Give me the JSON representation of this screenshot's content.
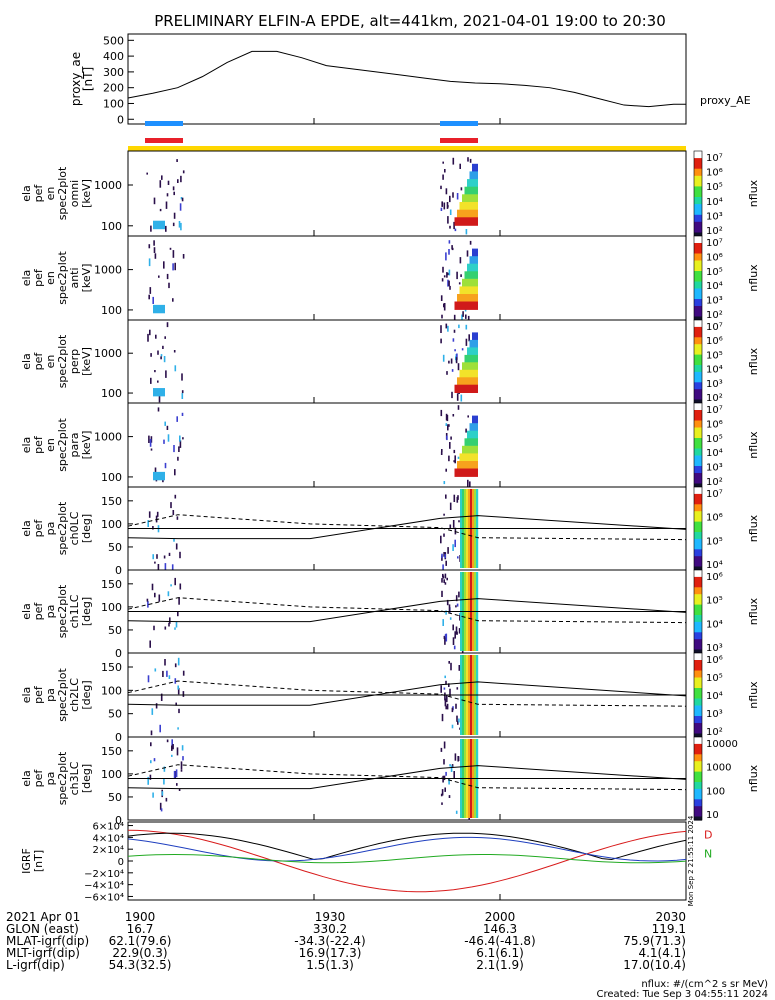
{
  "title": "PRELIMINARY ELFIN-A EPDE, alt=441km, 2021-04-01 19:00 to 20:30",
  "colors": {
    "axis": "#000000",
    "bar_blue": "#1e90ff",
    "bar_red": "#e8202a",
    "bar_yellow": "#ffd700",
    "bx": "#d81b1b",
    "by": "#1f3fbf",
    "bz": "#22aa22",
    "btot": "#000000"
  },
  "chart_data": [
    {
      "type": "line",
      "ylabel": [
        "proxy_ae",
        "[nT]"
      ],
      "yticks": [
        "500",
        "400",
        "300",
        "200",
        "100",
        "0"
      ],
      "ytick_values": [
        500,
        400,
        300,
        200,
        100,
        0
      ],
      "ylim": [
        -30,
        540
      ],
      "legend": "proxy_AE",
      "xlim_min": [
        0,
        90
      ],
      "x_min": [
        0,
        4,
        8,
        12,
        16,
        20,
        24,
        28,
        32,
        36,
        40,
        44,
        48,
        52,
        56,
        60,
        64,
        68,
        72,
        76,
        80,
        84,
        88,
        90
      ],
      "values": [
        135,
        165,
        200,
        270,
        360,
        430,
        430,
        390,
        340,
        320,
        300,
        280,
        260,
        240,
        230,
        225,
        215,
        200,
        170,
        130,
        90,
        80,
        95,
        95
      ]
    },
    {
      "type": "heatmap",
      "ylabel": [
        "ela",
        "pef",
        "en",
        "spec2plot",
        "omni",
        "[keV]"
      ],
      "yticks": [
        "1000",
        "100"
      ],
      "cbar_ticks": [
        "10⁷",
        "10⁶",
        "10⁵",
        "10⁴",
        "10³",
        "10²"
      ],
      "cbar_label": "nflux"
    },
    {
      "type": "heatmap",
      "ylabel": [
        "ela",
        "pef",
        "en",
        "spec2plot",
        "anti",
        "[keV]"
      ],
      "yticks": [
        "1000",
        "100"
      ],
      "cbar_ticks": [
        "10⁷",
        "10⁶",
        "10⁵",
        "10⁴",
        "10³",
        "10²"
      ],
      "cbar_label": "nflux"
    },
    {
      "type": "heatmap",
      "ylabel": [
        "ela",
        "pef",
        "en",
        "spec2plot",
        "perp",
        "[keV]"
      ],
      "yticks": [
        "1000",
        "100"
      ],
      "cbar_ticks": [
        "10⁷",
        "10⁶",
        "10⁵",
        "10⁴",
        "10³",
        "10²"
      ],
      "cbar_label": "nflux"
    },
    {
      "type": "heatmap",
      "ylabel": [
        "ela",
        "pef",
        "en",
        "spec2plot",
        "para",
        "[keV]"
      ],
      "yticks": [
        "1000",
        "100"
      ],
      "cbar_ticks": [
        "10⁷",
        "10⁶",
        "10⁵",
        "10⁴",
        "10³",
        "10²"
      ],
      "cbar_label": "nflux"
    },
    {
      "type": "heatmap",
      "ylabel": [
        "ela",
        "pef",
        "pa",
        "spec2plot",
        "ch0LC",
        "[deg]"
      ],
      "yticks": [
        "150",
        "100",
        "50",
        "0"
      ],
      "cbar_ticks": [
        "10⁷",
        "10⁶",
        "10⁵",
        "10⁴"
      ],
      "cbar_label": "nflux"
    },
    {
      "type": "heatmap",
      "ylabel": [
        "ela",
        "pef",
        "pa",
        "spec2plot",
        "ch1LC",
        "[deg]"
      ],
      "yticks": [
        "150",
        "100",
        "50",
        "0"
      ],
      "cbar_ticks": [
        "10⁶",
        "10⁵",
        "10⁴",
        "10³"
      ],
      "cbar_label": "nflux"
    },
    {
      "type": "heatmap",
      "ylabel": [
        "ela",
        "pef",
        "pa",
        "spec2plot",
        "ch2LC",
        "[deg]"
      ],
      "yticks": [
        "150",
        "100",
        "50",
        "0"
      ],
      "cbar_ticks": [
        "10⁶",
        "10⁵",
        "10⁴",
        "10³",
        "10²"
      ],
      "cbar_label": "nflux"
    },
    {
      "type": "heatmap",
      "ylabel": [
        "ela",
        "pef",
        "pa",
        "spec2plot",
        "ch3LC",
        "[deg]"
      ],
      "yticks": [
        "150",
        "100",
        "50",
        "0"
      ],
      "cbar_ticks": [
        "10000",
        "1000",
        "100",
        "10"
      ],
      "cbar_label": "nflux"
    },
    {
      "type": "line",
      "ylabel": [
        "IGRF",
        "[nT]"
      ],
      "yticks": [
        "6×10⁴",
        "4×10⁴",
        "2×10⁴",
        "0",
        "−2×10⁴",
        "−4×10⁴",
        "−6×10⁴"
      ],
      "ytick_values": [
        60000,
        40000,
        20000,
        0,
        -20000,
        -40000,
        -60000
      ],
      "ylim": [
        -66000,
        66000
      ],
      "right_labels": [
        "D",
        "N"
      ],
      "side_text": "Mon Sep  2 21:55:11 2024"
    }
  ],
  "x_axis": {
    "tick_labels": [
      "1900",
      "1930",
      "2000",
      "2030"
    ],
    "rows": [
      {
        "label": "2021 Apr 01",
        "values": [
          "1900",
          "1930",
          "2000",
          "2030"
        ]
      },
      {
        "label": "GLON (east)",
        "values": [
          "16.7",
          "330.2",
          "146.3",
          "119.1"
        ]
      },
      {
        "label": "MLAT-igrf(dip)",
        "values": [
          "62.1(79.6)",
          "-34.3(-22.4)",
          "-46.4(-41.8)",
          "75.9(71.3)"
        ]
      },
      {
        "label": "MLT-igrf(dip)",
        "values": [
          "22.9(0.3)",
          "16.9(17.3)",
          "6.1(6.1)",
          "4.1(4.1)"
        ]
      },
      {
        "label": "L-igrf(dip)",
        "values": [
          "54.3(32.5)",
          "1.5(1.3)",
          "2.1(1.9)",
          "17.0(10.4)"
        ]
      }
    ]
  },
  "footer": {
    "units": "nflux: #/(cm^2 s sr MeV)",
    "created": "Created: Tue Sep  3 04:55:11 2024"
  }
}
